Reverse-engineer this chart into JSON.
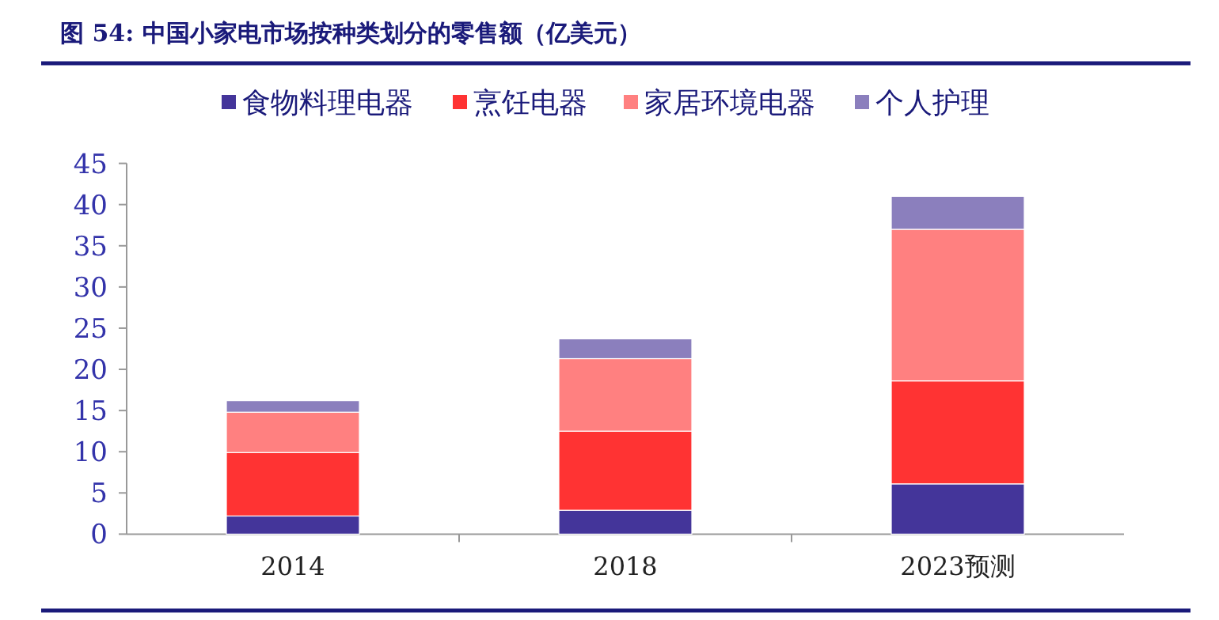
{
  "chart_data": {
    "type": "bar",
    "stacked": true,
    "title": "图 54:  中国小家电市场按种类划分的零售额（亿美元）",
    "categories": [
      "2014",
      "2018",
      "2023预测"
    ],
    "series": [
      {
        "name": "食物料理电器",
        "color": "#44359a",
        "values": [
          2.2,
          2.9,
          6.1
        ]
      },
      {
        "name": "烹饪电器",
        "color": "#ff3333",
        "values": [
          7.7,
          9.6,
          12.5
        ]
      },
      {
        "name": "家居环境电器",
        "color": "#ff8080",
        "values": [
          4.9,
          8.8,
          18.4
        ]
      },
      {
        "name": "个人护理",
        "color": "#8b7fbd",
        "values": [
          1.4,
          2.4,
          4.0
        ]
      }
    ],
    "ylim": [
      0,
      45
    ],
    "yticks": [
      0,
      5,
      10,
      15,
      20,
      25,
      30,
      35,
      40,
      45
    ],
    "legend": "top",
    "grid": false
  }
}
